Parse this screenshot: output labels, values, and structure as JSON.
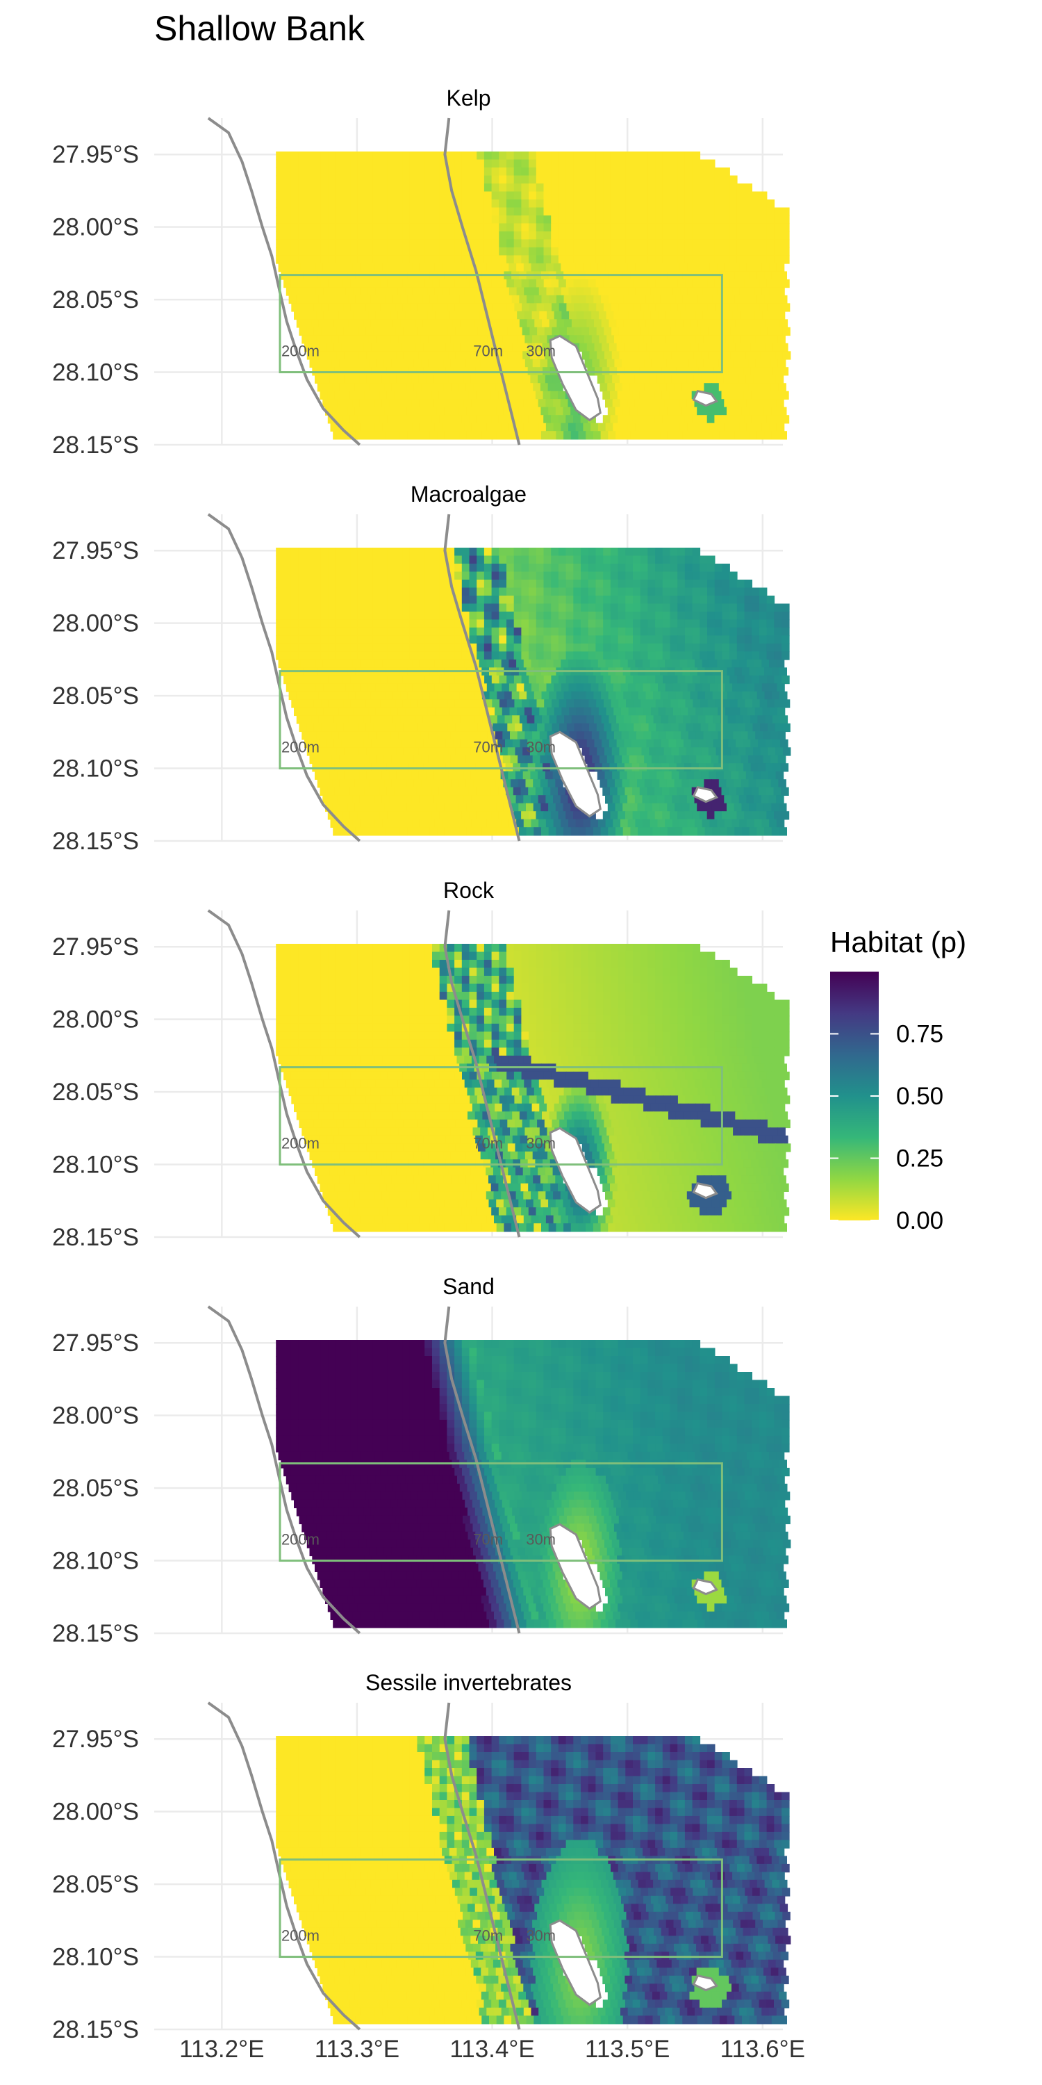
{
  "chart_data": {
    "type": "heatmap",
    "title": "Shallow Bank",
    "facets": [
      "Kelp",
      "Macroalgae",
      "Rock",
      "Sand",
      "Sessile invertebrates"
    ],
    "x_tick_labels": [
      "113.2°E",
      "113.3°E",
      "113.4°E",
      "113.5°E",
      "113.6°E"
    ],
    "x_ticks": [
      113.2,
      113.3,
      113.4,
      113.5,
      113.6
    ],
    "y_tick_labels": [
      "27.95°S",
      "28.00°S",
      "28.05°S",
      "28.10°S",
      "28.15°S"
    ],
    "y_ticks": [
      -27.95,
      -28.0,
      -28.05,
      -28.1,
      -28.15
    ],
    "xlim": [
      113.15,
      113.615
    ],
    "ylim": [
      -28.15,
      -27.925
    ],
    "contour_labels": [
      "200m",
      "70m",
      "30m"
    ],
    "legend": {
      "title": "Habitat (p)",
      "tick_labels": [
        "0.75",
        "0.50",
        "0.25",
        "0.00"
      ],
      "ticks": [
        0.75,
        0.5,
        0.25,
        0.0
      ],
      "range": [
        0,
        1
      ],
      "palette": [
        "#fde725",
        "#90d743",
        "#35b779",
        "#21918c",
        "#31688e",
        "#443983",
        "#440154"
      ]
    },
    "colors": {
      "contour": "#8c8c8c",
      "box": "#7fbf7b",
      "island_fill": "#ffffff"
    }
  }
}
